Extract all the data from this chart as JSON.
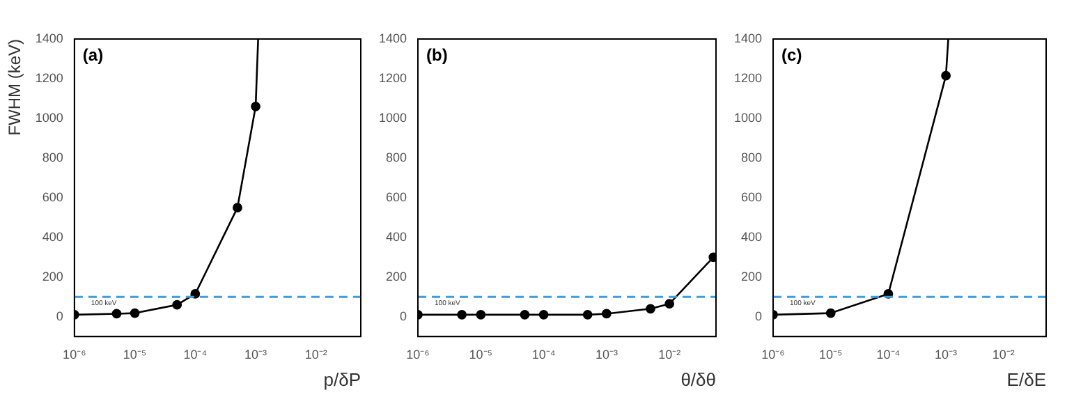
{
  "chart_data": [
    {
      "type": "line",
      "annotations": [
        "(a)"
      ],
      "xlabel": "p/δP",
      "ylabel": "FWHM (keV)",
      "xlim": [
        1e-06,
        0.055
      ],
      "ylim": [
        -100,
        1400
      ],
      "log": "x",
      "grid": false,
      "legend": false,
      "marker": "circle",
      "line_style": "solid",
      "xticks": [
        {
          "value": 1e-06,
          "label": "10⁻⁶"
        },
        {
          "value": 1e-05,
          "label": "10⁻⁵"
        },
        {
          "value": 0.0001,
          "label": "10⁻⁴"
        },
        {
          "value": 0.001,
          "label": "10⁻³"
        },
        {
          "value": 0.01,
          "label": "10⁻²"
        }
      ],
      "yticks": [
        0,
        200,
        400,
        600,
        800,
        1000,
        1200,
        1400
      ],
      "ref_lines": [
        {
          "axis": "y",
          "value": 100,
          "label": "100 keV",
          "color": "#3a9ee0",
          "line_style": "dashed"
        }
      ],
      "series": [
        {
          "color": "#000000",
          "x": [
            1e-06,
            5e-06,
            1e-05,
            5e-05,
            0.0001,
            0.0005,
            0.001
          ],
          "values": [
            10,
            15,
            18,
            60,
            115,
            550,
            1060
          ]
        },
        {
          "color": "#000000",
          "marker": "none",
          "x": [
            0.001,
            0.0011
          ],
          "values": [
            1060,
            1400
          ]
        }
      ]
    },
    {
      "type": "line",
      "annotations": [
        "(b)"
      ],
      "xlabel": "θ/δθ",
      "xlim": [
        1e-06,
        0.055
      ],
      "ylim": [
        -100,
        1400
      ],
      "log": "x",
      "grid": false,
      "legend": false,
      "marker": "circle",
      "line_style": "solid",
      "xticks": [
        {
          "value": 1e-06,
          "label": "10⁻⁶"
        },
        {
          "value": 1e-05,
          "label": "10⁻⁵"
        },
        {
          "value": 0.0001,
          "label": "10⁻⁴"
        },
        {
          "value": 0.001,
          "label": "10⁻³"
        },
        {
          "value": 0.01,
          "label": "10⁻²"
        }
      ],
      "yticks": [
        0,
        200,
        400,
        600,
        800,
        1000,
        1200,
        1400
      ],
      "ref_lines": [
        {
          "axis": "y",
          "value": 100,
          "label": "100 keV",
          "color": "#3a9ee0",
          "line_style": "dashed"
        }
      ],
      "series": [
        {
          "color": "#000000",
          "x": [
            1e-06,
            5e-06,
            1e-05,
            5e-05,
            0.0001,
            0.0005,
            0.001,
            0.005,
            0.01,
            0.05
          ],
          "values": [
            10,
            10,
            10,
            10,
            10,
            10,
            15,
            40,
            65,
            300
          ]
        }
      ]
    },
    {
      "type": "line",
      "annotations": [
        "(c)"
      ],
      "xlabel": "E/δE",
      "xlim": [
        1e-06,
        0.055
      ],
      "ylim": [
        -100,
        1400
      ],
      "log": "x",
      "grid": false,
      "legend": false,
      "marker": "circle",
      "line_style": "solid",
      "xticks": [
        {
          "value": 1e-06,
          "label": "10⁻⁶"
        },
        {
          "value": 1e-05,
          "label": "10⁻⁵"
        },
        {
          "value": 0.0001,
          "label": "10⁻⁴"
        },
        {
          "value": 0.001,
          "label": "10⁻³"
        },
        {
          "value": 0.01,
          "label": "10⁻²"
        }
      ],
      "yticks": [
        0,
        200,
        400,
        600,
        800,
        1000,
        1200,
        1400
      ],
      "ref_lines": [
        {
          "axis": "y",
          "value": 100,
          "label": "100 keV",
          "color": "#3a9ee0",
          "line_style": "dashed"
        }
      ],
      "series": [
        {
          "color": "#000000",
          "x": [
            1e-06,
            1e-05,
            0.0001,
            0.001
          ],
          "values": [
            10,
            18,
            115,
            1215
          ]
        },
        {
          "color": "#000000",
          "marker": "none",
          "x": [
            0.001,
            0.0011
          ],
          "values": [
            1215,
            1400
          ]
        }
      ]
    }
  ]
}
